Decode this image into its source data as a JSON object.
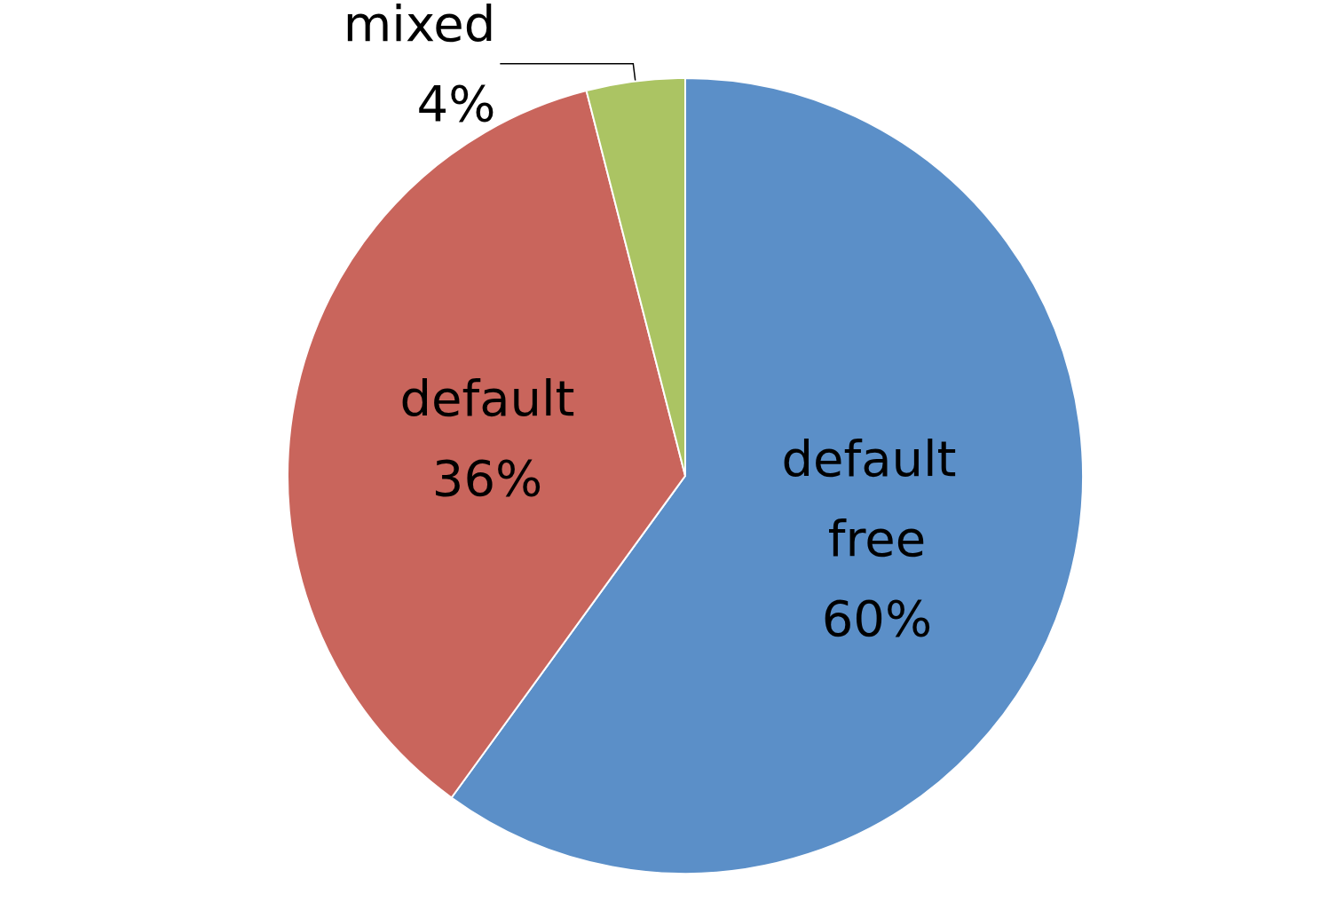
{
  "chart_data": {
    "type": "pie",
    "categories": [
      "default free",
      "default",
      "mixed"
    ],
    "values": [
      60,
      36,
      4
    ],
    "value_labels": [
      "60%",
      "36%",
      "4%"
    ],
    "colors": [
      "#5b8fc8",
      "#c9655c",
      "#abc463"
    ],
    "legend": false
  }
}
